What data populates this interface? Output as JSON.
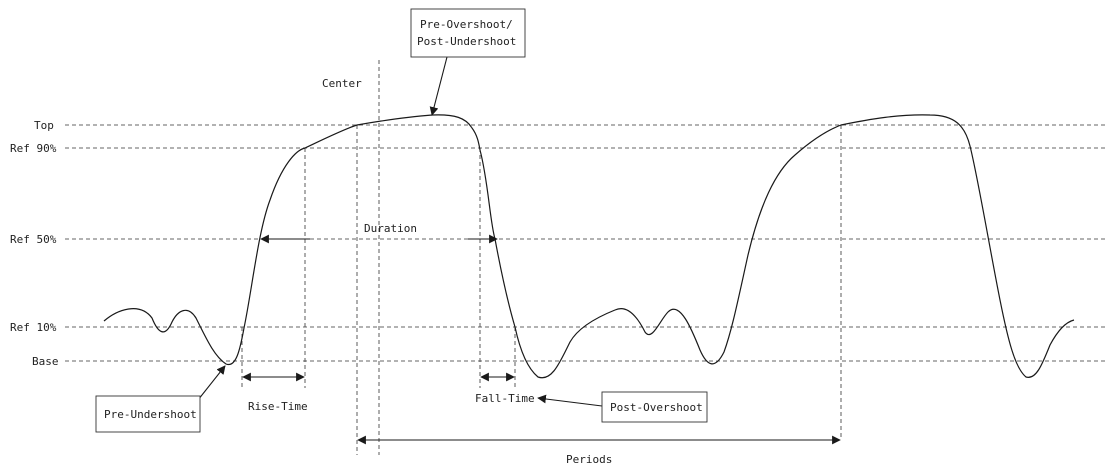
{
  "level_labels": {
    "top": "Top",
    "ref90": "Ref 90%",
    "ref50": "Ref 50%",
    "ref10": "Ref 10%",
    "base": "Base"
  },
  "annotations": {
    "center": "Center",
    "duration": "Duration",
    "rise_time": "Rise-Time",
    "fall_time": "Fall-Time",
    "periods": "Periods"
  },
  "callouts": {
    "pre_overshoot_line1": "Pre-Overshoot/",
    "pre_overshoot_line2": "Post-Undershoot",
    "pre_undershoot": "Pre-Undershoot",
    "post_overshoot": "Post-Overshoot"
  },
  "colors": {
    "ink": "#1a1a1a",
    "guide": "#333333",
    "background": "#ffffff"
  }
}
